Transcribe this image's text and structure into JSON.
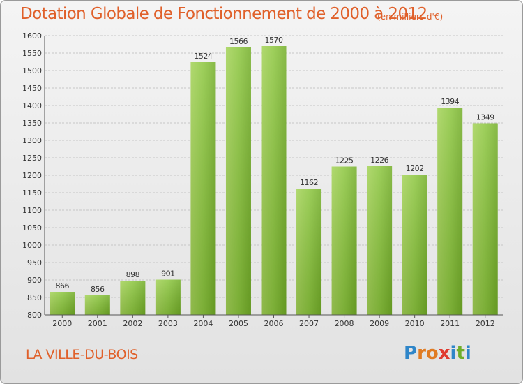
{
  "header": {
    "title": "Dotation Globale de Fonctionnement de 2000 à 2012",
    "unit": "(en milliers d'€)"
  },
  "footer": {
    "commune": "LA VILLE-DU-BOIS",
    "logo_text": "Proxiti",
    "logo_letters": [
      "P",
      "r",
      "o",
      "x",
      "i",
      "t",
      "i"
    ],
    "logo_colors": [
      "#2f86c9",
      "#e07b22",
      "#e07b22",
      "#e03a2f",
      "#2f86c9",
      "#6fae2a",
      "#2f86c9"
    ]
  },
  "colors": {
    "bar": "#79b52e",
    "bar_light": "#a3d256",
    "accent": "#e0602a",
    "grid": "#c6c6c6"
  },
  "chart_data": {
    "type": "bar",
    "title": "Dotation Globale de Fonctionnement de 2000 à 2012",
    "subtitle": "(en milliers d'€)",
    "categories": [
      "2000",
      "2001",
      "2002",
      "2003",
      "2004",
      "2005",
      "2006",
      "2007",
      "2008",
      "2009",
      "2010",
      "2011",
      "2012"
    ],
    "values": [
      866,
      856,
      898,
      901,
      1524,
      1566,
      1570,
      1162,
      1225,
      1226,
      1202,
      1394,
      1349
    ],
    "ylim": [
      800,
      1600
    ],
    "yticks": [
      800,
      850,
      900,
      950,
      1000,
      1050,
      1100,
      1150,
      1200,
      1250,
      1300,
      1350,
      1400,
      1450,
      1500,
      1550,
      1600
    ],
    "grid": true,
    "data_labels": true
  }
}
